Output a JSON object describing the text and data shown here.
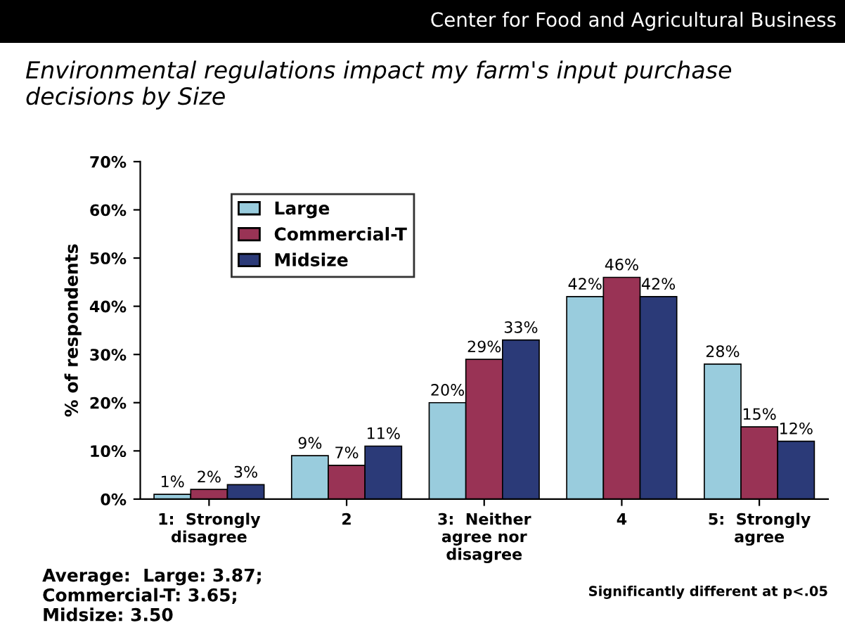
{
  "chart_data": {
    "type": "bar",
    "title": "Environmental regulations impact my farm's input purchase decisions by Size",
    "ylabel": "% of respondents",
    "categories": [
      "1:  Strongly\ndisagree",
      "2",
      "3:  Neither\nagree nor\ndisagree",
      "4",
      "5:  Strongly\nagree"
    ],
    "series": [
      {
        "name": "Large",
        "color": "#99ccdd",
        "values": [
          1,
          9,
          20,
          42,
          28
        ],
        "value_labels": [
          "1%",
          "9%",
          "20%",
          "42%",
          "28%"
        ]
      },
      {
        "name": "Commercial-T",
        "color": "#993355",
        "values": [
          2,
          7,
          29,
          46,
          15
        ],
        "value_labels": [
          "2%",
          "7%",
          "29%",
          "46%",
          "15%"
        ]
      },
      {
        "name": "Midsize",
        "color": "#2b3a78",
        "values": [
          3,
          11,
          33,
          42,
          12
        ],
        "value_labels": [
          "3%",
          "11%",
          "33%",
          "42%",
          "12%"
        ]
      }
    ],
    "ylim": [
      0,
      70
    ],
    "yticks": [
      {
        "value": 0,
        "label": "0%"
      },
      {
        "value": 10,
        "label": "10%"
      },
      {
        "value": 20,
        "label": "20%"
      },
      {
        "value": 30,
        "label": "30%"
      },
      {
        "value": 40,
        "label": "40%"
      },
      {
        "value": 50,
        "label": "50%"
      },
      {
        "value": 60,
        "label": "60%"
      },
      {
        "value": 70,
        "label": "70%"
      }
    ],
    "legend": "top left",
    "grid": false,
    "annotations": [
      "Center for Food and Agricultural Business",
      "Average:  Large: 3.87;\nCommercial-T: 3.65;\nMidsize: 3.50",
      "Significantly different at p<.05"
    ]
  }
}
